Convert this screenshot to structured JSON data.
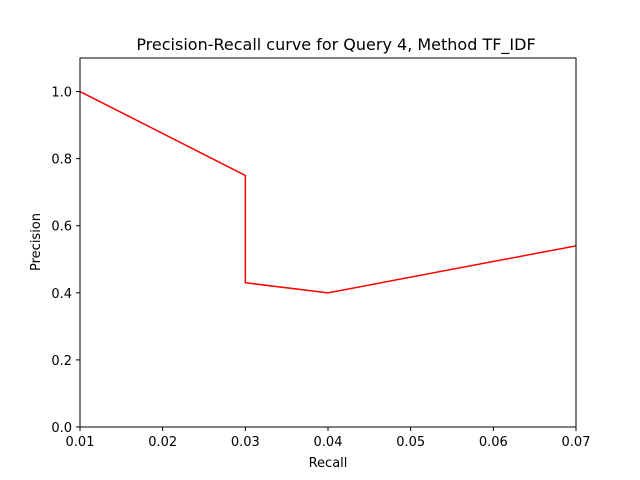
{
  "chart_data": {
    "type": "line",
    "title": "Precision-Recall curve for Query 4, Method TF_IDF",
    "xlabel": "Recall",
    "ylabel": "Precision",
    "xlim": [
      0.01,
      0.07
    ],
    "ylim": [
      0.0,
      1.1
    ],
    "xticks": [
      "0.01",
      "0.02",
      "0.03",
      "0.04",
      "0.05",
      "0.06",
      "0.07"
    ],
    "yticks": [
      "0.0",
      "0.2",
      "0.4",
      "0.6",
      "0.8",
      "1.0"
    ],
    "grid": false,
    "series": [
      {
        "color": "#ff0000",
        "x": [
          0.01,
          0.03,
          0.03,
          0.04,
          0.07
        ],
        "y": [
          1.0,
          0.75,
          0.43,
          0.4,
          0.54
        ]
      }
    ]
  }
}
